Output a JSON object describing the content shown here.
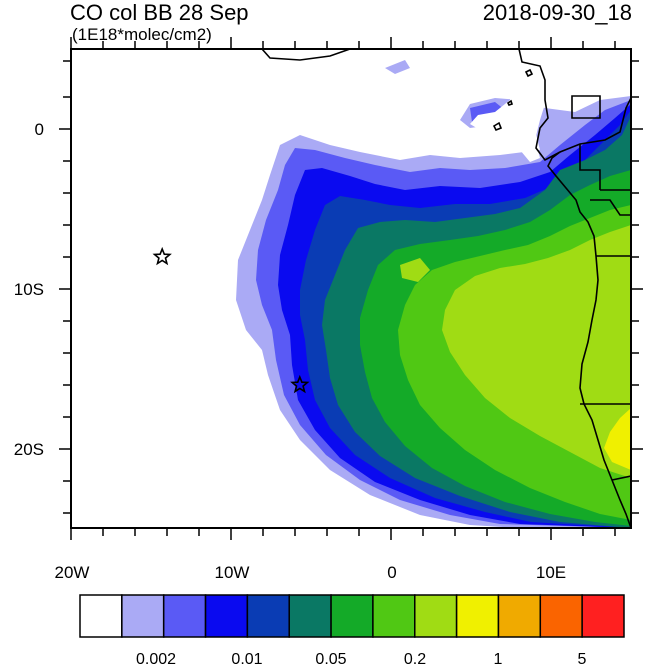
{
  "header": {
    "title": "CO col BB 28 Sep",
    "datetime": "2018-09-30_18",
    "units": "(1E18*molec/cm2)"
  },
  "axes": {
    "y_ticks": [
      "0",
      "10S",
      "20S"
    ],
    "x_ticks": [
      "20W",
      "10W",
      "0",
      "10E"
    ]
  },
  "colorbar": {
    "colors": [
      "#ffffff",
      "#aaaaf5",
      "#5a5af5",
      "#0a0af0",
      "#0a3cb4",
      "#0a7864",
      "#14aa28",
      "#50c814",
      "#a0dc14",
      "#f0f000",
      "#f0aa00",
      "#fa6400",
      "#ff2020"
    ],
    "labels": [
      "0.002",
      "0.01",
      "0.05",
      "0.2",
      "1",
      "5"
    ]
  },
  "markers": [
    {
      "name": "star-marker-west",
      "lon": -14.3,
      "lat": -8.0
    },
    {
      "name": "star-marker-east",
      "lon": -5.7,
      "lat": -16.0
    }
  ]
}
